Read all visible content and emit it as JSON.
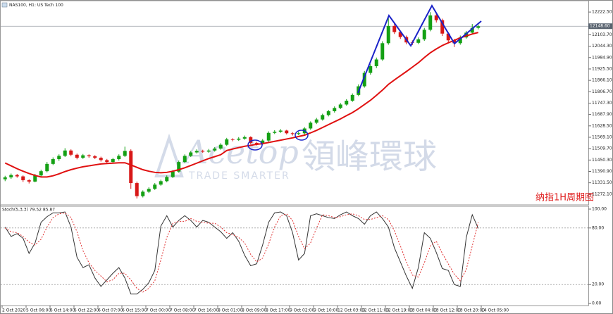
{
  "chart_data": [
    {
      "type": "candlestick",
      "title": "NAS100, H1: US Tech 100",
      "up_color": "#14a014",
      "down_color": "#d81818",
      "xlim": [
        0,
        80
      ],
      "xticks": [
        {
          "value": 0,
          "label": "2 Oct 2020"
        },
        {
          "value": 4,
          "label": "5 Oct 06:00"
        },
        {
          "value": 8,
          "label": "5 Oct 14:00"
        },
        {
          "value": 12,
          "label": "5 Oct 22:00"
        },
        {
          "value": 16,
          "label": "6 Oct 07:00"
        },
        {
          "value": 20,
          "label": "6 Oct 15:00"
        },
        {
          "value": 24,
          "label": "7 Oct 00:00"
        },
        {
          "value": 28,
          "label": "7 Oct 08:00"
        },
        {
          "value": 32,
          "label": "7 Oct 16:00"
        },
        {
          "value": 36,
          "label": "8 Oct 01:00"
        },
        {
          "value": 40,
          "label": "8 Oct 09:00"
        },
        {
          "value": 44,
          "label": "8 Oct 17:00"
        },
        {
          "value": 48,
          "label": "9 Oct 02:00"
        },
        {
          "value": 52,
          "label": "9 Oct 10:00"
        },
        {
          "value": 56,
          "label": "12 Oct 03:00"
        },
        {
          "value": 60,
          "label": "12 Oct 11:00"
        },
        {
          "value": 64,
          "label": "12 Oct 19:00"
        },
        {
          "value": 68,
          "label": "13 Oct 04:00"
        },
        {
          "value": 72,
          "label": "13 Oct 12:00"
        },
        {
          "value": 76,
          "label": "13 Oct 20:00"
        },
        {
          "value": 80,
          "label": "14 Oct 05:00"
        }
      ],
      "ylim": [
        11220,
        12278
      ],
      "yticks": [
        {
          "value": 12222.5,
          "label": "12222.50"
        },
        {
          "value": 12103.7,
          "label": "12103.70"
        },
        {
          "value": 12044.3,
          "label": "12044.30"
        },
        {
          "value": 11984.9,
          "label": "11984.90"
        },
        {
          "value": 11925.5,
          "label": "11925.50"
        },
        {
          "value": 11866.1,
          "label": "11866.10"
        },
        {
          "value": 11806.7,
          "label": "11806.70"
        },
        {
          "value": 11747.3,
          "label": "11747.30"
        },
        {
          "value": 11687.9,
          "label": "11687.90"
        },
        {
          "value": 11628.5,
          "label": "11628.50"
        },
        {
          "value": 11569.1,
          "label": "11569.10"
        },
        {
          "value": 11509.7,
          "label": "11509.70"
        },
        {
          "value": 11450.3,
          "label": "11450.30"
        },
        {
          "value": 11390.9,
          "label": "11390.90"
        },
        {
          "value": 11331.5,
          "label": "11331.50"
        },
        {
          "value": 11272.1,
          "label": "11272.10"
        }
      ],
      "price_line": {
        "value": 12148.6,
        "label": "12148.60"
      },
      "candles": [
        [
          11350,
          11368,
          11340,
          11360
        ],
        [
          11360,
          11380,
          11352,
          11372
        ],
        [
          11372,
          11378,
          11358,
          11365
        ],
        [
          11365,
          11370,
          11336,
          11345
        ],
        [
          11345,
          11350,
          11328,
          11338
        ],
        [
          11338,
          11378,
          11334,
          11370
        ],
        [
          11370,
          11400,
          11362,
          11392
        ],
        [
          11392,
          11440,
          11386,
          11430
        ],
        [
          11430,
          11464,
          11424,
          11455
        ],
        [
          11455,
          11480,
          11446,
          11472
        ],
        [
          11472,
          11512,
          11466,
          11500
        ],
        [
          11500,
          11506,
          11470,
          11478
        ],
        [
          11478,
          11484,
          11454,
          11462
        ],
        [
          11462,
          11482,
          11456,
          11475
        ],
        [
          11475,
          11480,
          11462,
          11470
        ],
        [
          11470,
          11476,
          11455,
          11462
        ],
        [
          11462,
          11468,
          11442,
          11450
        ],
        [
          11450,
          11456,
          11432,
          11440
        ],
        [
          11440,
          11462,
          11434,
          11455
        ],
        [
          11455,
          11480,
          11448,
          11472
        ],
        [
          11472,
          11520,
          11466,
          11498
        ],
        [
          11498,
          11506,
          11300,
          11330
        ],
        [
          11330,
          11338,
          11250,
          11262
        ],
        [
          11262,
          11292,
          11255,
          11285
        ],
        [
          11285,
          11308,
          11278,
          11300
        ],
        [
          11300,
          11330,
          11294,
          11322
        ],
        [
          11322,
          11348,
          11316,
          11340
        ],
        [
          11340,
          11370,
          11334,
          11362
        ],
        [
          11362,
          11398,
          11356,
          11390
        ],
        [
          11390,
          11448,
          11384,
          11440
        ],
        [
          11440,
          11480,
          11434,
          11472
        ],
        [
          11472,
          11498,
          11466,
          11490
        ],
        [
          11490,
          11506,
          11484,
          11498
        ],
        [
          11498,
          11504,
          11488,
          11494
        ],
        [
          11494,
          11508,
          11488,
          11500
        ],
        [
          11500,
          11518,
          11494,
          11510
        ],
        [
          11510,
          11538,
          11504,
          11530
        ],
        [
          11530,
          11566,
          11524,
          11558
        ],
        [
          11558,
          11564,
          11548,
          11556
        ],
        [
          11556,
          11570,
          11550,
          11562
        ],
        [
          11562,
          11578,
          11556,
          11570
        ],
        [
          11570,
          11574,
          11532,
          11540
        ],
        [
          11540,
          11546,
          11526,
          11535
        ],
        [
          11535,
          11560,
          11530,
          11552
        ],
        [
          11552,
          11600,
          11546,
          11592
        ],
        [
          11592,
          11606,
          11586,
          11598
        ],
        [
          11598,
          11612,
          11592,
          11604
        ],
        [
          11604,
          11608,
          11584,
          11590
        ],
        [
          11590,
          11596,
          11578,
          11586
        ],
        [
          11586,
          11598,
          11580,
          11590
        ],
        [
          11590,
          11622,
          11584,
          11615
        ],
        [
          11615,
          11652,
          11608,
          11645
        ],
        [
          11645,
          11670,
          11638,
          11662
        ],
        [
          11662,
          11692,
          11656,
          11685
        ],
        [
          11685,
          11712,
          11678,
          11705
        ],
        [
          11705,
          11730,
          11698,
          11722
        ],
        [
          11722,
          11748,
          11716,
          11740
        ],
        [
          11740,
          11768,
          11734,
          11760
        ],
        [
          11760,
          11798,
          11754,
          11790
        ],
        [
          11790,
          11845,
          11784,
          11835
        ],
        [
          11835,
          11915,
          11828,
          11905
        ],
        [
          11905,
          11950,
          11896,
          11940
        ],
        [
          11940,
          11985,
          11930,
          11975
        ],
        [
          11975,
          12070,
          11968,
          12060
        ],
        [
          12060,
          12190,
          12052,
          12150
        ],
        [
          12150,
          12165,
          12108,
          12118
        ],
        [
          12118,
          12125,
          12082,
          12092
        ],
        [
          12092,
          12100,
          12054,
          12064
        ],
        [
          12064,
          12075,
          12050,
          12062
        ],
        [
          12062,
          12090,
          12055,
          12080
        ],
        [
          12080,
          12140,
          12072,
          12130
        ],
        [
          12130,
          12222,
          12122,
          12205
        ],
        [
          12205,
          12215,
          12168,
          12180
        ],
        [
          12180,
          12188,
          12098,
          12110
        ],
        [
          12110,
          12118,
          12062,
          12075
        ],
        [
          12075,
          12082,
          12040,
          12060
        ],
        [
          12060,
          12100,
          12052,
          12090
        ],
        [
          12090,
          12124,
          12084,
          12115
        ],
        [
          12115,
          12160,
          12108,
          12140
        ],
        [
          12140,
          12156,
          12132,
          12148
        ]
      ],
      "ma": {
        "color": "#e01010",
        "values": [
          11435,
          11420,
          11405,
          11392,
          11380,
          11370,
          11362,
          11362,
          11368,
          11378,
          11390,
          11400,
          11408,
          11415,
          11420,
          11425,
          11430,
          11432,
          11434,
          11436,
          11436,
          11425,
          11412,
          11400,
          11392,
          11386,
          11384,
          11386,
          11392,
          11400,
          11410,
          11422,
          11434,
          11446,
          11458,
          11468,
          11478,
          11500,
          11508,
          11515,
          11522,
          11527,
          11532,
          11536,
          11542,
          11548,
          11554,
          11560,
          11566,
          11573,
          11580,
          11592,
          11605,
          11620,
          11635,
          11650,
          11665,
          11682,
          11698,
          11718,
          11740,
          11762,
          11788,
          11815,
          11845,
          11868,
          11890,
          11912,
          11935,
          11958,
          11985,
          12010,
          12030,
          12048,
          12062,
          12075,
          12088,
          12098,
          12108,
          12116
        ]
      }
    },
    {
      "type": "line",
      "title": "Stoch(5,3,3) 79.52 85.87",
      "xlim": [
        0,
        80
      ],
      "ylim": [
        0,
        100
      ],
      "yticks": [
        {
          "value": 100,
          "label": "100.00"
        },
        {
          "value": 80,
          "label": "80.00"
        },
        {
          "value": 20,
          "label": "20.00"
        },
        {
          "value": 0,
          "label": "0.00"
        }
      ],
      "levels": [
        80,
        20
      ],
      "series": [
        {
          "color": "#333333",
          "values": [
            81,
            71,
            74,
            69,
            53,
            64,
            86,
            92,
            96,
            96,
            97,
            81,
            49,
            38,
            41,
            27,
            18,
            25,
            32,
            38,
            27,
            10,
            10,
            15,
            22,
            35,
            82,
            93,
            81,
            88,
            93,
            88,
            81,
            88,
            86,
            81,
            76,
            69,
            75,
            66,
            51,
            40,
            42,
            62,
            86,
            96,
            97,
            93,
            75,
            46,
            53,
            93,
            95,
            93,
            91,
            90,
            94,
            97,
            93,
            90,
            84,
            93,
            97,
            90,
            81,
            59,
            44,
            29,
            16,
            38,
            75,
            69,
            54,
            37,
            35,
            20,
            18,
            70,
            94,
            79.52
          ]
        },
        {
          "color": "#e03030",
          "dash": true,
          "values": [
            80,
            76,
            75,
            71,
            65,
            62,
            68,
            81,
            91,
            95,
            96,
            91,
            76,
            56,
            43,
            35,
            29,
            23,
            25,
            32,
            32,
            25,
            16,
            12,
            16,
            24,
            46,
            70,
            85,
            87,
            87,
            90,
            87,
            86,
            85,
            85,
            81,
            75,
            73,
            70,
            64,
            52,
            44,
            48,
            63,
            81,
            93,
            95,
            88,
            71,
            58,
            64,
            80,
            94,
            93,
            91,
            92,
            94,
            95,
            93,
            89,
            89,
            91,
            93,
            89,
            77,
            61,
            44,
            30,
            28,
            43,
            61,
            66,
            53,
            42,
            31,
            24,
            36,
            61,
            85.87
          ]
        }
      ]
    }
  ],
  "watermark": {
    "brand": "Acetop",
    "slogan": "TRADE SMARTER",
    "chinese": "領峰環球"
  },
  "annotation": "纳指1H周期图"
}
